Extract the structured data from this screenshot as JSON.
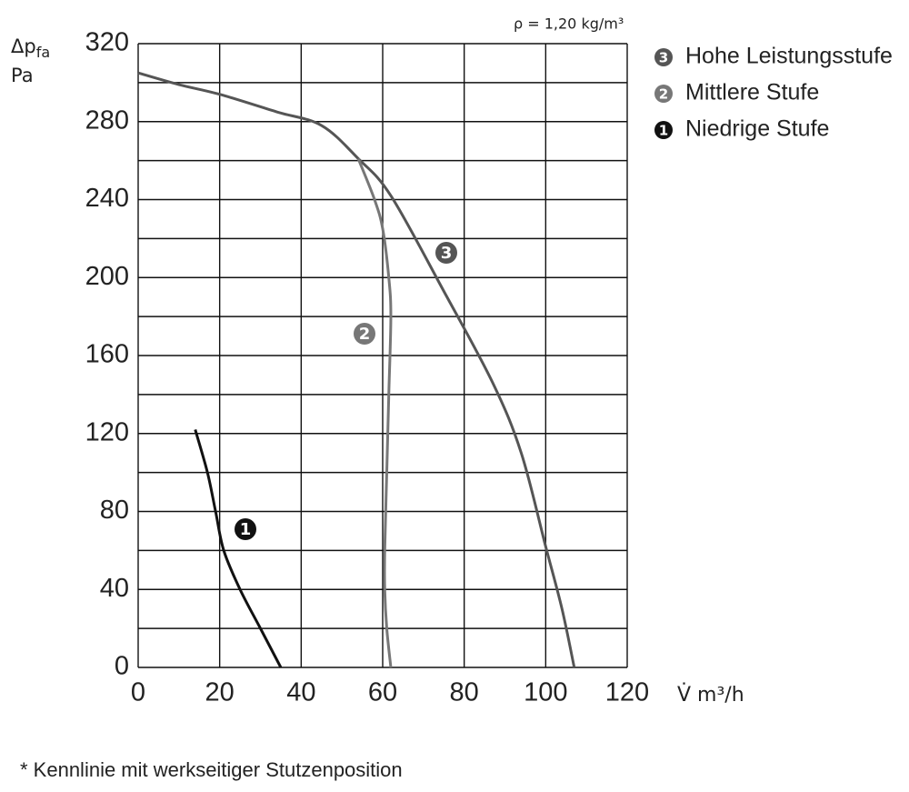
{
  "chart_data": {
    "type": "line",
    "note": "ρ = 1,20 kg/m³",
    "y_label": "Δp",
    "y_label_sub": "fa",
    "y_unit": "Pa",
    "x_label": "V̇ m³/h",
    "footnote": "* Kennlinie mit werkseitiger Stutzenposition",
    "xlim": [
      0,
      120
    ],
    "xticks": [
      0,
      20,
      40,
      60,
      80,
      100,
      120
    ],
    "ylim": [
      0,
      320
    ],
    "yticks": [
      0,
      40,
      80,
      120,
      160,
      200,
      240,
      280,
      320
    ],
    "ygrid": [
      0,
      20,
      40,
      60,
      80,
      100,
      120,
      140,
      160,
      180,
      200,
      220,
      240,
      260,
      280,
      300,
      320
    ],
    "grid": true,
    "series": [
      {
        "name": "Hohe Leistungsstufe",
        "marker": "3",
        "color": "#555555",
        "x": [
          0,
          10,
          20,
          34,
          45,
          54,
          62,
          75,
          87,
          94,
          100,
          104,
          107
        ],
        "values": [
          305,
          299,
          294,
          285,
          278,
          261,
          242,
          193,
          146,
          110,
          62,
          30,
          0
        ]
      },
      {
        "name": "Mittlere Stufe",
        "marker": "2",
        "color": "#777777",
        "x": [
          54,
          58,
          60,
          61.5,
          62,
          61.5,
          61,
          60.5,
          60.5,
          61,
          62
        ],
        "values": [
          261,
          240,
          225,
          200,
          180,
          140,
          100,
          60,
          40,
          20,
          0
        ]
      },
      {
        "name": "Niedrige Stufe",
        "marker": "1",
        "color": "#111111",
        "x": [
          14,
          17,
          19,
          21,
          25,
          30,
          35
        ],
        "values": [
          122,
          100,
          80,
          60,
          40,
          20,
          0
        ]
      }
    ]
  }
}
